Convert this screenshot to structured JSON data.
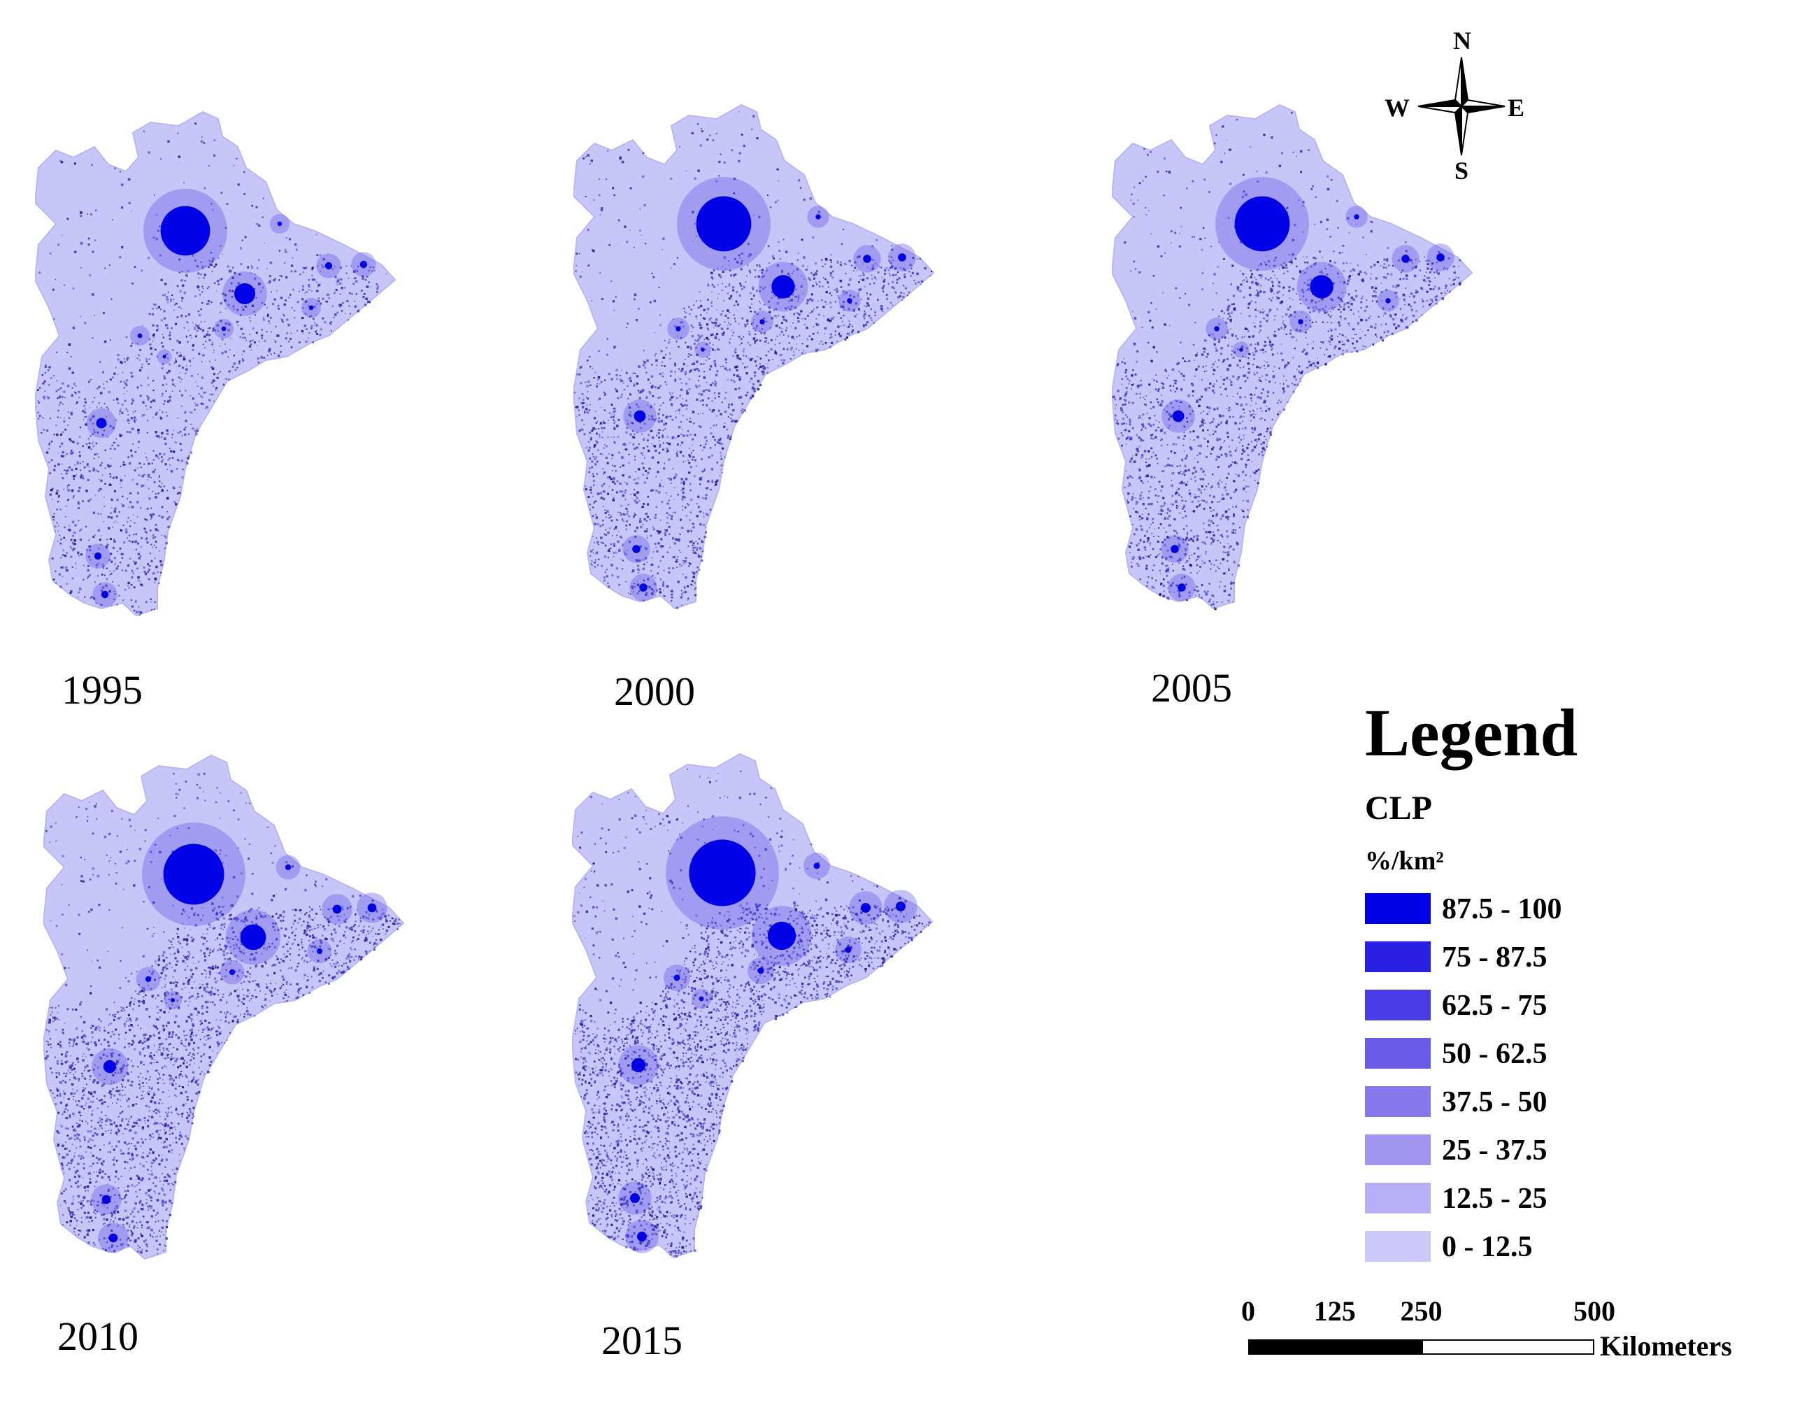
{
  "map_panels": [
    {
      "year": "1995",
      "density_class": 2
    },
    {
      "year": "2000",
      "density_class": 3
    },
    {
      "year": "2005",
      "density_class": 3
    },
    {
      "year": "2010",
      "density_class": 4
    },
    {
      "year": "2015",
      "density_class": 5
    }
  ],
  "compass": {
    "north": "N",
    "south": "S",
    "east": "E",
    "west": "W"
  },
  "legend": {
    "title": "Legend",
    "variable": "CLP",
    "unit": "%/km²",
    "classes": [
      {
        "label": "87.5 - 100",
        "color": "#0000e6"
      },
      {
        "label": "75 - 87.5",
        "color": "#2a1fe2"
      },
      {
        "label": "62.5 - 75",
        "color": "#4a3de6"
      },
      {
        "label": "50 - 62.5",
        "color": "#6a5ce9"
      },
      {
        "label": "37.5 - 50",
        "color": "#8677ec"
      },
      {
        "label": "25 - 37.5",
        "color": "#a195ef"
      },
      {
        "label": "12.5 - 25",
        "color": "#b6aff5"
      },
      {
        "label": "0 - 12.5",
        "color": "#ccc8fa"
      }
    ]
  },
  "scale_bar": {
    "ticks": [
      "0",
      "125",
      "250",
      "500"
    ],
    "tick_values": [
      0,
      125,
      250,
      500
    ],
    "unit": "Kilometers"
  },
  "colors": {
    "region_fill": "#c8c6f8",
    "urban_core": "#0000e6",
    "speckle": "#1a1490"
  }
}
